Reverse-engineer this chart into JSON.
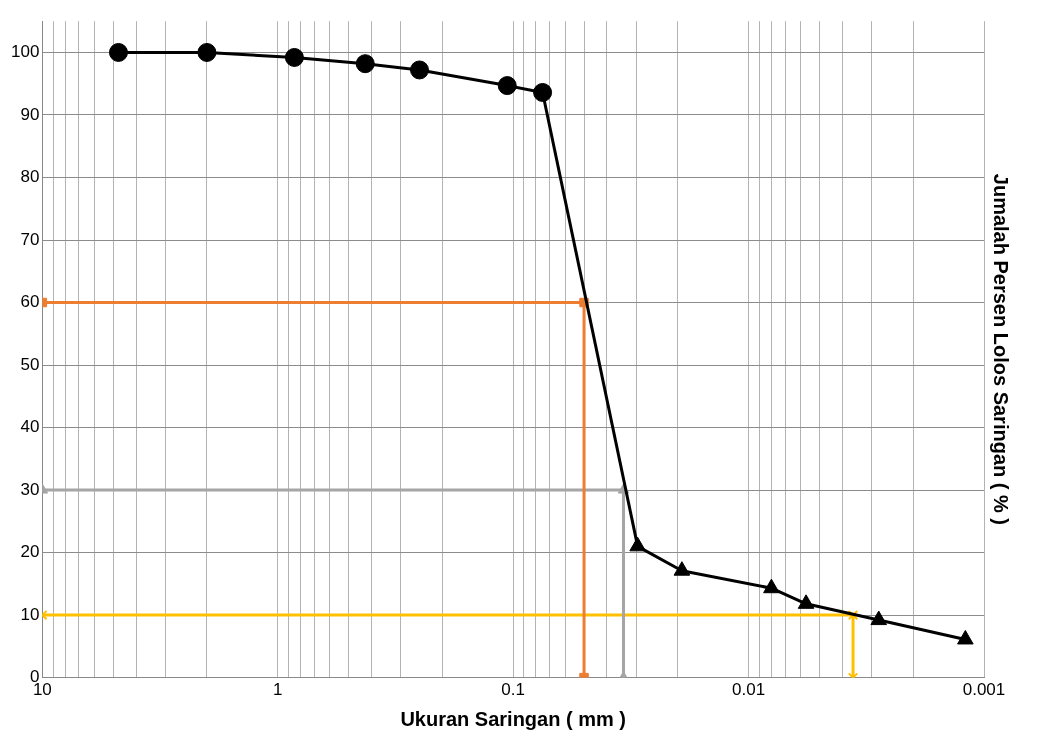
{
  "chart_data": {
    "type": "line",
    "xlabel": "Ukuran Saringan ( mm )",
    "ylabel": "Jumalah Persen Lolos Saringan ( % )",
    "log": "x",
    "xlim": [
      10,
      0.001
    ],
    "xticks": [
      10,
      1,
      0.1,
      0.01,
      0.001
    ],
    "ylim": [
      0,
      105
    ],
    "yticks": [
      0,
      10,
      20,
      30,
      40,
      50,
      60,
      70,
      80,
      90,
      100
    ],
    "grid": true,
    "legend": false,
    "series": [
      {
        "color": "#000000",
        "marker": "circle",
        "x": [
          4.75,
          2.0,
          0.85,
          0.425,
          0.25,
          0.106,
          0.075
        ],
        "values": [
          100,
          100,
          99.2,
          98.2,
          97.2,
          94.7,
          93.6
        ]
      },
      {
        "color": "#000000",
        "x": [
          0.075,
          0.0296
        ],
        "values": [
          93.6,
          21
        ]
      },
      {
        "color": "#000000",
        "marker": "triangle",
        "x": [
          0.0296,
          0.0192,
          0.008,
          0.0057,
          0.0028,
          0.0012
        ],
        "values": [
          21,
          17.1,
          14.3,
          11.8,
          9.2,
          6.1
        ]
      },
      {
        "color": "#ed7d31",
        "marker": "square",
        "x": [
          10,
          0.05,
          0.05
        ],
        "values": [
          60,
          60,
          0
        ]
      },
      {
        "color": "#a5a5a5",
        "marker": "triangle",
        "x": [
          10,
          0.034,
          0.034
        ],
        "values": [
          30,
          30,
          0
        ]
      },
      {
        "color": "#ffc000",
        "marker": "cross",
        "x": [
          10,
          0.0036,
          0.0036
        ],
        "values": [
          10,
          10,
          0
        ]
      }
    ]
  }
}
